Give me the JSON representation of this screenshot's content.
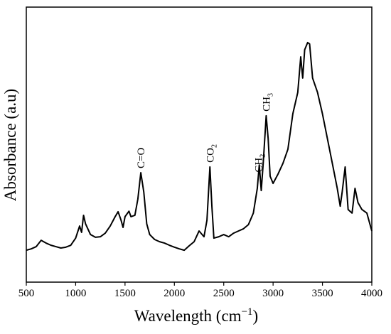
{
  "chart_data": {
    "type": "line",
    "xlabel": {
      "text": "Wavelength (cm",
      "sup": "−1",
      "after": ")"
    },
    "ylabel": "Absorbance (a.u)",
    "x": [
      500,
      550,
      600,
      650,
      700,
      750,
      800,
      850,
      900,
      950,
      1000,
      1040,
      1060,
      1080,
      1100,
      1150,
      1200,
      1250,
      1300,
      1350,
      1400,
      1430,
      1460,
      1480,
      1500,
      1540,
      1560,
      1600,
      1630,
      1660,
      1690,
      1720,
      1750,
      1800,
      1850,
      1900,
      1950,
      2000,
      2050,
      2100,
      2150,
      2200,
      2250,
      2300,
      2330,
      2360,
      2380,
      2400,
      2450,
      2500,
      2550,
      2600,
      2650,
      2700,
      2750,
      2800,
      2840,
      2860,
      2880,
      2900,
      2930,
      2950,
      2970,
      3000,
      3050,
      3100,
      3150,
      3200,
      3250,
      3280,
      3300,
      3320,
      3350,
      3370,
      3400,
      3450,
      3500,
      3550,
      3600,
      3650,
      3680,
      3700,
      3730,
      3760,
      3800,
      3830,
      3860,
      3900,
      3950,
      4000
    ],
    "values": [
      11.6,
      12.1,
      12.9,
      15.2,
      14.2,
      13.4,
      12.9,
      12.4,
      12.7,
      13.4,
      16.0,
      20.4,
      18.1,
      24.3,
      21.2,
      17.3,
      16.3,
      16.5,
      17.8,
      20.4,
      23.8,
      25.6,
      22.5,
      19.9,
      23.8,
      25.8,
      23.8,
      24.3,
      30.2,
      39.8,
      32.8,
      21.2,
      17.3,
      15.5,
      14.7,
      14.2,
      13.4,
      12.7,
      12.1,
      11.6,
      13.2,
      14.7,
      18.6,
      16.5,
      22.5,
      41.9,
      27.6,
      16.0,
      16.5,
      17.3,
      16.5,
      17.8,
      18.6,
      19.4,
      20.9,
      25.1,
      34.1,
      42.6,
      33.3,
      43.2,
      60.5,
      52.2,
      38.5,
      35.9,
      39.3,
      43.2,
      48.3,
      61.2,
      69.0,
      81.9,
      74.2,
      84.5,
      87.1,
      86.6,
      74.2,
      69.0,
      61.2,
      52.2,
      43.2,
      34.1,
      27.6,
      32.8,
      41.9,
      26.4,
      25.1,
      34.1,
      28.9,
      26.4,
      25.1,
      18.6
    ],
    "color": "#000000",
    "xlim": [
      500,
      4000
    ],
    "ylim": [
      0,
      100
    ],
    "xticks": [
      500,
      1000,
      1500,
      2000,
      2500,
      3000,
      3500,
      4000
    ],
    "annotations": [
      {
        "text": "C=O",
        "x": 1660
      },
      {
        "text": "CO",
        "sub": "2",
        "x": 2360
      },
      {
        "text": "CH",
        "sub": "2",
        "x": 2850
      },
      {
        "text": "CH",
        "sub": "3",
        "x": 2930
      }
    ]
  }
}
